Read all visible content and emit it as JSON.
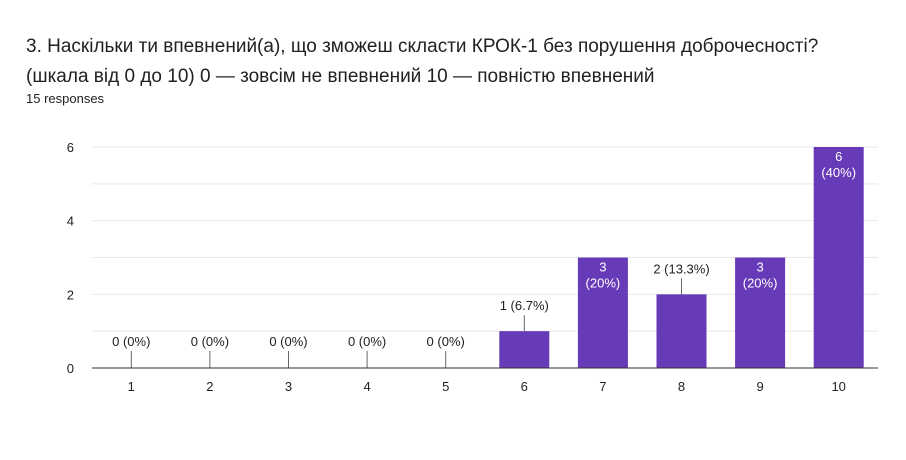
{
  "question": {
    "line1": "3. Наскільки ти впевнений(а), що зможеш скласти КРОК-1 без порушення доброчесності?",
    "line2": "(шкала від 0 до 10)  0 — зовсім не впевнений  10 — повністю впевнений"
  },
  "responses_label": "15 responses",
  "colors": {
    "bar": "#673ab7",
    "grid": "#e8e8e8",
    "axis": "#333333",
    "label_inside": "#ffffff",
    "label_outside": "#202124"
  },
  "chart_data": {
    "type": "bar",
    "categories": [
      "1",
      "2",
      "3",
      "4",
      "5",
      "6",
      "7",
      "8",
      "9",
      "10"
    ],
    "values": [
      0,
      0,
      0,
      0,
      0,
      1,
      3,
      2,
      3,
      6
    ],
    "data_labels": [
      "0 (0%)",
      "0 (0%)",
      "0 (0%)",
      "0 (0%)",
      "0 (0%)",
      "1 (6.7%)",
      "3\n(20%)",
      "2 (13.3%)",
      "3\n(20%)",
      "6\n(40%)"
    ],
    "label_inside": [
      false,
      false,
      false,
      false,
      false,
      false,
      true,
      false,
      true,
      true
    ],
    "yticks": [
      0,
      2,
      4,
      6
    ],
    "ylim": [
      0,
      6
    ],
    "grid": true,
    "title": "",
    "xlabel": "",
    "ylabel": ""
  }
}
